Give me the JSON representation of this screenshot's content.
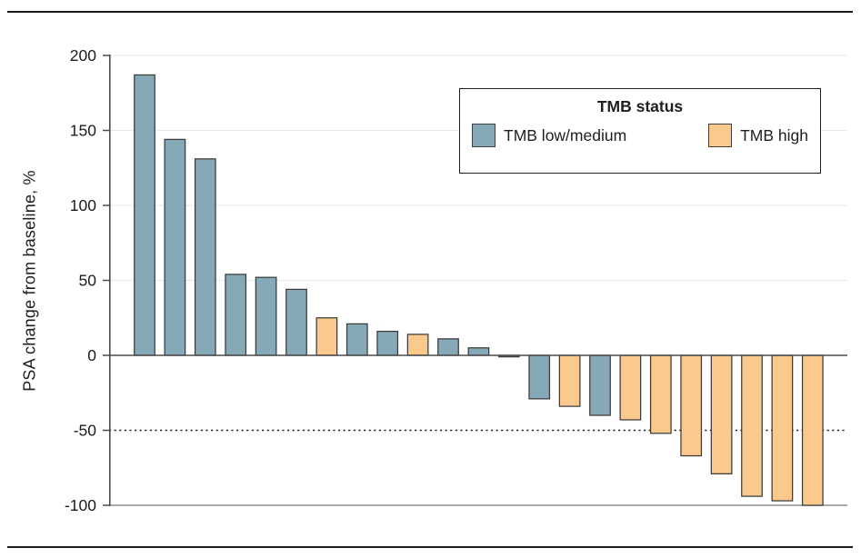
{
  "chart_data": {
    "type": "bar",
    "subtype": "waterfall",
    "title": "",
    "xlabel": "",
    "ylabel": "PSA change from baseline, %",
    "ylim": [
      -100,
      200
    ],
    "yticks": [
      200,
      150,
      100,
      50,
      0,
      -50,
      -100
    ],
    "grid": "light horizontal gridlines every 50 above zero",
    "reference_lines": [
      {
        "y": 0,
        "style": "solid dark"
      },
      {
        "y": -50,
        "style": "dotted black"
      },
      {
        "y": -100,
        "style": "solid gray"
      }
    ],
    "legend": {
      "title": "TMB status",
      "position": "upper right boxed",
      "entries": [
        {
          "key": "low",
          "label": "TMB low/medium",
          "color": "#86a9b7"
        },
        {
          "key": "high",
          "label": "TMB high",
          "color": "#fbc98c"
        }
      ]
    },
    "bars": [
      {
        "value": 187,
        "group": "low"
      },
      {
        "value": 144,
        "group": "low"
      },
      {
        "value": 131,
        "group": "low"
      },
      {
        "value": 54,
        "group": "low"
      },
      {
        "value": 52,
        "group": "low"
      },
      {
        "value": 44,
        "group": "low"
      },
      {
        "value": 25,
        "group": "high"
      },
      {
        "value": 21,
        "group": "low"
      },
      {
        "value": 16,
        "group": "low"
      },
      {
        "value": 14,
        "group": "high"
      },
      {
        "value": 11,
        "group": "low"
      },
      {
        "value": 5,
        "group": "low"
      },
      {
        "value": -1,
        "group": "low"
      },
      {
        "value": -29,
        "group": "low"
      },
      {
        "value": -34,
        "group": "high"
      },
      {
        "value": -40,
        "group": "low"
      },
      {
        "value": -43,
        "group": "high"
      },
      {
        "value": -52,
        "group": "high"
      },
      {
        "value": -67,
        "group": "high"
      },
      {
        "value": -79,
        "group": "high"
      },
      {
        "value": -94,
        "group": "high"
      },
      {
        "value": -97,
        "group": "high"
      },
      {
        "value": -100,
        "group": "high"
      }
    ]
  },
  "colors": {
    "bar_outline": "#3b3b3b",
    "axis": "#4b4b4b",
    "gridline": "#e7e7e7",
    "bottom_boundary": "#8f8f8f",
    "dotted_line": "#222222",
    "tick_text": "#1c1c1c",
    "figure_rule": "#1a1a1a"
  }
}
